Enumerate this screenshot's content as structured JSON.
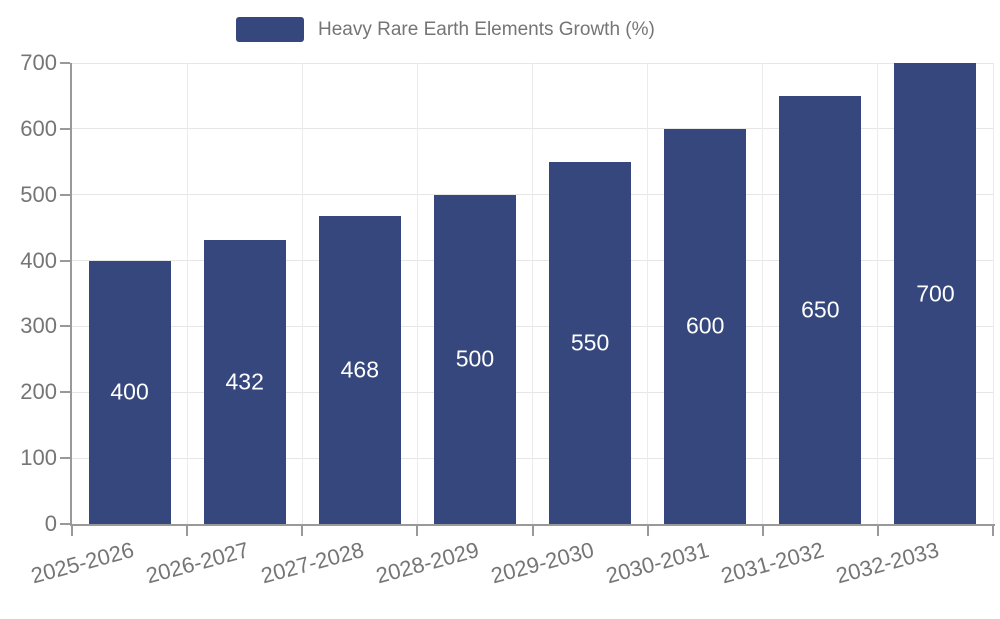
{
  "legend": {
    "label": "Heavy Rare Earth Elements Growth (%)"
  },
  "chart_data": {
    "type": "bar",
    "title": "Heavy Rare Earth Elements Growth (%)",
    "categories": [
      "2025-2026",
      "2026-2027",
      "2027-2028",
      "2028-2029",
      "2029-2030",
      "2030-2031",
      "2031-2032",
      "2032-2033"
    ],
    "values": [
      400,
      432,
      468,
      500,
      550,
      600,
      650,
      700
    ],
    "xlabel": "",
    "ylabel": "",
    "ylim": [
      0,
      700
    ],
    "yticks": [
      0,
      100,
      200,
      300,
      400,
      500,
      600,
      700
    ],
    "grid": true,
    "legend_position": "top-center",
    "colors": {
      "bar": "#36477e",
      "value_label": "#ffffff",
      "axis": "#999999",
      "grid": "#e6e6e6",
      "tick_text": "#757575"
    }
  }
}
